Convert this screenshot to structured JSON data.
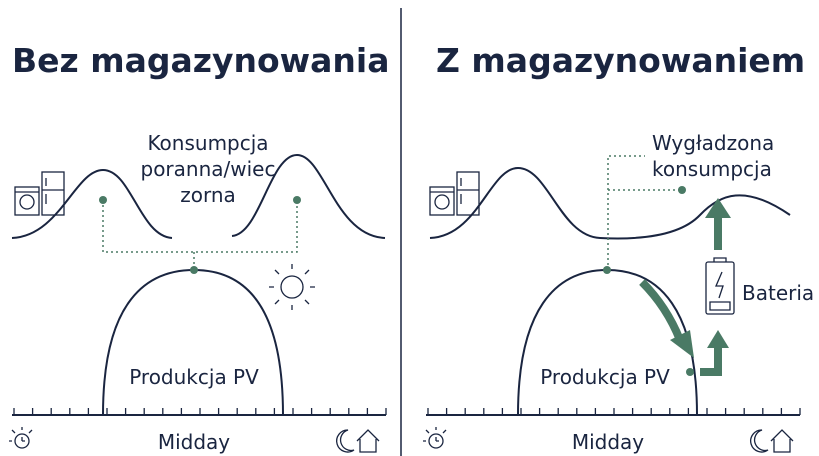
{
  "left": {
    "title": "Bez magazynowania",
    "consumption_label": [
      "Konsumpcja",
      "poranna/wiec",
      "zorna"
    ],
    "production_label": "Produkcja PV",
    "axis_label": "Midday"
  },
  "right": {
    "title": "Z magazynowaniem",
    "consumption_label": [
      "Wygładzona",
      "konsumpcja"
    ],
    "battery_label": "Bateria",
    "production_label": "Produkcja PV",
    "axis_label": "Midday"
  }
}
